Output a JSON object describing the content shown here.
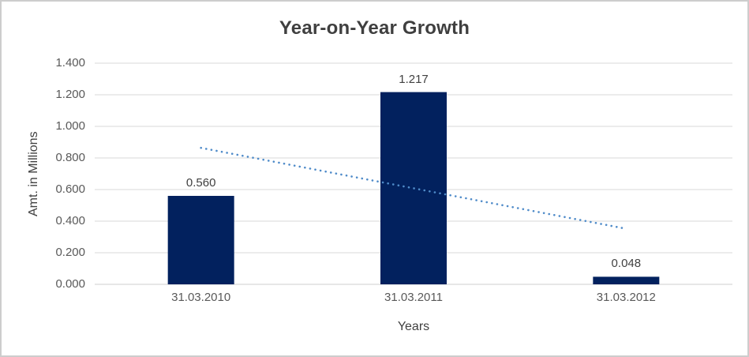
{
  "chart_data": {
    "type": "bar",
    "title": "Year-on-Year Growth",
    "xlabel": "Years",
    "ylabel": "Amt. in Millions",
    "categories": [
      "31.03.2010",
      "31.03.2011",
      "31.03.2012"
    ],
    "values": [
      0.56,
      1.217,
      0.048
    ],
    "data_labels": [
      "0.560",
      "1.217",
      "0.048"
    ],
    "ylim": [
      0,
      1.4
    ],
    "ytick_step": 0.2,
    "ytick_labels": [
      "0.000",
      "0.200",
      "0.400",
      "0.600",
      "0.800",
      "1.000",
      "1.200",
      "1.400"
    ],
    "grid": true,
    "legend": false,
    "trendline": {
      "type": "linear",
      "style": "dotted",
      "points": [
        [
          0,
          0.864
        ],
        [
          2,
          0.352
        ]
      ]
    },
    "colors": {
      "bar": "#02215e",
      "trendline": "#4f8bc9",
      "gridline": "#d9d9d9",
      "baseline": "#cfcfcf",
      "title_text": "#3f3f3f",
      "tick_text": "#595959",
      "axis_title_text": "#404040",
      "border": "#cdcdcd"
    }
  }
}
